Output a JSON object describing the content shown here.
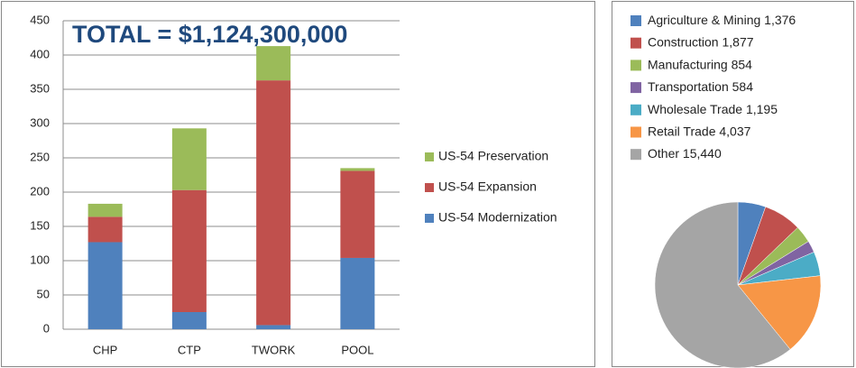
{
  "chart_data": [
    {
      "type": "stacked-bar",
      "title": "TOTAL = $1,124,300,000",
      "categories": [
        "CHP",
        "CTP",
        "TWORK",
        "POOL"
      ],
      "series": [
        {
          "name": "US-54 Modernization",
          "color": "#4f81bd",
          "values": [
            127,
            25,
            6,
            104
          ]
        },
        {
          "name": "US-54 Expansion",
          "color": "#c0504d",
          "values": [
            37,
            178,
            357,
            127
          ]
        },
        {
          "name": "US-54 Preservation",
          "color": "#9bbb59",
          "values": [
            19,
            90,
            50,
            4
          ]
        }
      ],
      "ylim": [
        0,
        450
      ],
      "yticks": [
        0,
        50,
        100,
        150,
        200,
        250,
        300,
        350,
        400,
        450
      ],
      "grid": true,
      "legend": "right"
    },
    {
      "type": "pie",
      "categories": [
        "Agriculture & Mining",
        "Construction",
        "Manufacturing",
        "Transportation",
        "Wholesale Trade",
        "Retail Trade",
        "Other"
      ],
      "values": [
        1376,
        1877,
        854,
        584,
        1195,
        4037,
        15440
      ],
      "value_labels": [
        "1,376",
        "1,877",
        "854",
        "584",
        "1,195",
        "4,037",
        "15,440"
      ],
      "colors": [
        "#4f81bd",
        "#c0504d",
        "#9bbb59",
        "#8064a2",
        "#4bacc6",
        "#f79646",
        "#a5a5a5"
      ],
      "legend": "top"
    }
  ]
}
